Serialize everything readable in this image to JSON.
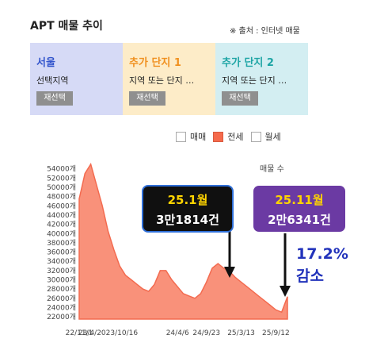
{
  "header": {
    "title": "APT 매물 추이",
    "source": "※ 출처 : 인터넷 매물"
  },
  "panels": [
    {
      "title": "서울",
      "subtitle": "선택지역",
      "button": "재선택"
    },
    {
      "title": "추가 단지 1",
      "subtitle": "지역 또는 단지 …",
      "button": "재선택"
    },
    {
      "title": "추가 단지 2",
      "subtitle": "지역 또는 단지 …",
      "button": "재선택"
    }
  ],
  "legend": {
    "items": [
      {
        "label": "매매",
        "checked": false
      },
      {
        "label": "전세",
        "checked": true
      },
      {
        "label": "월세",
        "checked": false
      }
    ]
  },
  "colors": {
    "area_fill": "#f9917a",
    "area_line": "#f36b50",
    "box1_bg": "#101010",
    "box1_border": "#2f6fd8",
    "box1_top": "#ffd400",
    "box2_bg": "#6b3aa3",
    "box2_top": "#ffd400",
    "decrease_text": "#2233bb"
  },
  "annotations": {
    "box1": {
      "line1": "25.1월",
      "line2": "3만1814건"
    },
    "box2": {
      "line1": "25.11월",
      "line2": "2만6341건"
    },
    "change_percent": "17.2%",
    "change_word": "감소"
  },
  "chart_data": {
    "type": "area",
    "series": [
      {
        "name": "",
        "x": [
          "22/11/1",
          "22/12",
          "23/1",
          "23/2",
          "23/3",
          "23/4",
          "23/5",
          "23/6",
          "23/7",
          "23/8",
          "23/9",
          "23/10",
          "23/11",
          "23/12",
          "24/1",
          "24/2",
          "24/3",
          "24/4",
          "24/5",
          "24/6",
          "24/7",
          "24/8",
          "24/9",
          "24/10",
          "24/11",
          "24/12",
          "25/1",
          "25/2",
          "25/3",
          "25/4",
          "25/5",
          "25/6",
          "25/7",
          "25/8",
          "25/9",
          "25/10",
          "25/11"
        ],
        "values": [
          47500,
          53000,
          55000,
          50500,
          46000,
          40500,
          36500,
          33000,
          31000,
          30000,
          29000,
          28000,
          27500,
          29000,
          32000,
          32000,
          30000,
          28500,
          27000,
          26500,
          26000,
          27000,
          29500,
          32500,
          33500,
          32500,
          31814,
          30500,
          29500,
          28500,
          27500,
          26500,
          25500,
          24500,
          23500,
          23000,
          26341
        ]
      }
    ],
    "x_tick_labels": [
      "22/11/1",
      "23/4/2023/10/16",
      "24/4/6",
      "24/9/23",
      "25/3/13",
      "25/9/12"
    ],
    "x_tick_positions": [
      "22/11/1",
      "23/4",
      "24/4",
      "24/9",
      "25/3",
      "25/9"
    ],
    "y_ticks": [
      22000,
      24000,
      26000,
      28000,
      30000,
      32000,
      34000,
      36000,
      38000,
      40000,
      42000,
      44000,
      46000,
      48000,
      50000,
      52000,
      54000
    ],
    "y_tick_suffix": "개",
    "ylim": [
      21500,
      55500
    ],
    "ylabel": "매물 수",
    "grid": false
  }
}
